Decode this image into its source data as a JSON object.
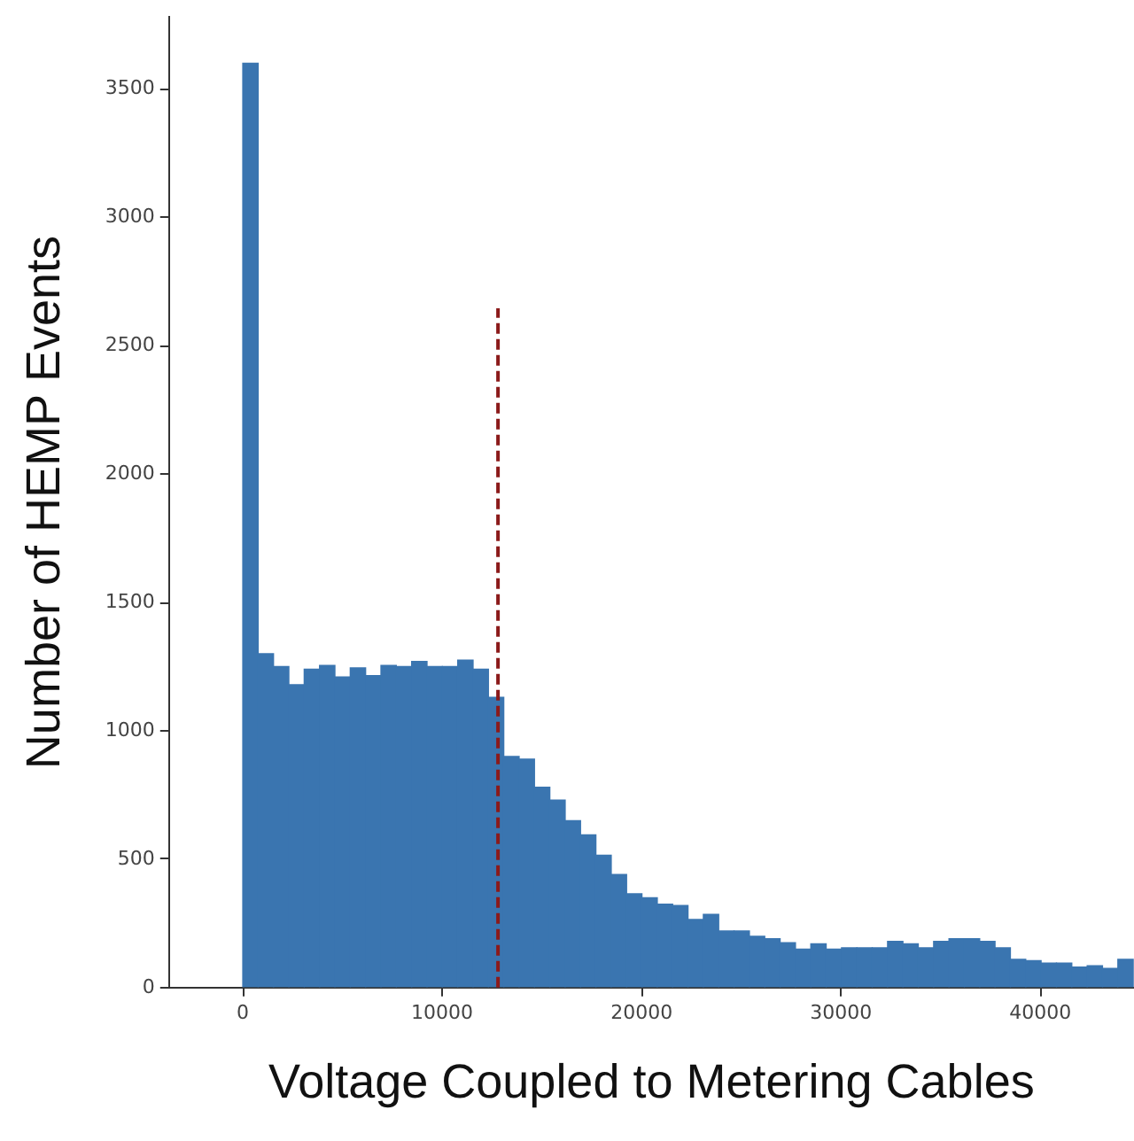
{
  "chart_data": {
    "type": "histogram",
    "xlabel": "Voltage Coupled to Metering Cables",
    "ylabel": "Number of HEMP Events",
    "bins": [
      0,
      770,
      1540,
      2310,
      3080,
      3850,
      4620,
      5390,
      6160,
      6930,
      7700,
      8470,
      9240,
      10010,
      10780,
      11550,
      12320,
      13090,
      13860,
      14630,
      15400,
      16170,
      16940,
      17710,
      18480,
      19250,
      20020,
      20790,
      21560,
      22330,
      23100,
      23870,
      24640,
      25410,
      26180,
      26950,
      27720,
      28490,
      29260,
      30030,
      30800,
      31570,
      32340,
      33110,
      33880,
      34650,
      35420,
      36190,
      36960,
      37730,
      38500,
      39270,
      40040,
      40810,
      41580,
      42350,
      43120,
      43890,
      44660
    ],
    "values": [
      3600,
      1300,
      1250,
      1180,
      1240,
      1255,
      1210,
      1245,
      1215,
      1255,
      1250,
      1270,
      1250,
      1250,
      1275,
      1240,
      1130,
      900,
      890,
      780,
      730,
      650,
      595,
      515,
      440,
      365,
      350,
      325,
      320,
      265,
      285,
      220,
      220,
      200,
      190,
      175,
      150,
      170,
      150,
      155,
      155,
      155,
      180,
      170,
      155,
      180,
      190,
      190,
      180,
      155,
      110,
      105,
      95,
      95,
      80,
      85,
      75,
      110
    ],
    "color": "#3a75b0",
    "xlim": [
      -3700,
      44700
    ],
    "xticks": [
      0,
      10000,
      20000,
      30000,
      40000
    ],
    "ylim": [
      0,
      3780
    ],
    "yticks": [
      0,
      500,
      1000,
      1500,
      2000,
      2500,
      3000,
      3500
    ],
    "ref_lines": [
      {
        "axis": "x",
        "value": 12800,
        "color": "#8b1a1a",
        "line_style": "dashed"
      }
    ],
    "grid": false,
    "legend": false
  }
}
